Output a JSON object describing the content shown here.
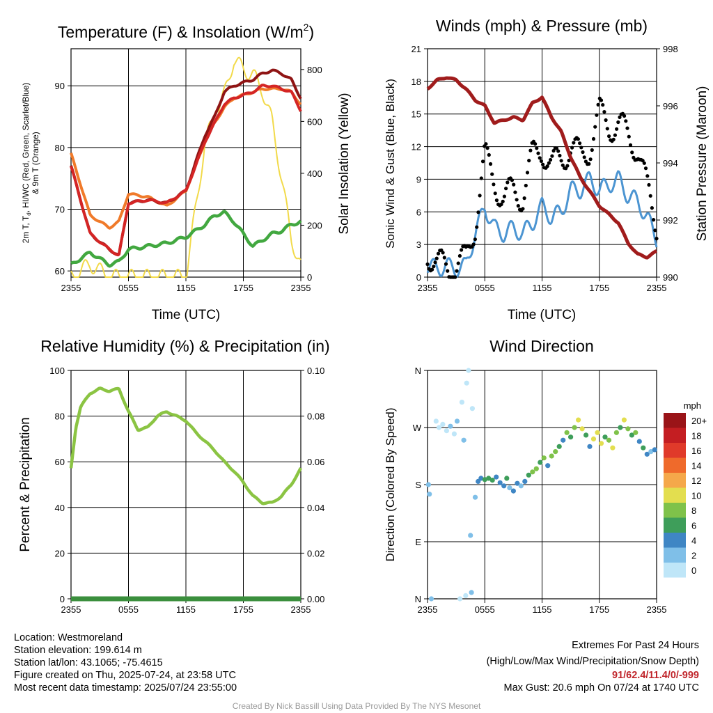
{
  "panels": {
    "temperature": {
      "title": "Temperature (F) & Insolation (W/m",
      "title_sup": "2",
      "title_end": ")",
      "ylabel_left_line1": "2m T, T",
      "ylabel_left_sub": "d",
      "ylabel_left_rest": ", HI/WC (Red, Green, Scarlet/Blue)",
      "ylabel_left_line2": "& 9m T (Orange)",
      "ylabel_right": "Solar Insolation (Yellow)",
      "xlabel": "Time (UTC)"
    },
    "winds": {
      "title": "Winds (mph) & Pressure (mb)",
      "ylabel_left": "Sonic Wind & Gust (Blue, Black)",
      "ylabel_right": "Station Pressure (Maroon)",
      "xlabel": "Time (UTC)"
    },
    "humidity": {
      "title": "Relative Humidity (%) & Precipitation (in)",
      "ylabel_left": "Percent & Precipitation"
    },
    "direction": {
      "title": "Wind Direction",
      "ylabel_left": "Direction (Colored By Speed)",
      "legend_title": "mph"
    }
  },
  "x_ticks": [
    "2355",
    "0555",
    "1155",
    "1755",
    "2355"
  ],
  "info": {
    "location": "Location: Westmoreland",
    "elevation": "Station elevation: 199.614 m",
    "latlon": "Station lat/lon: 43.1065; -75.4615",
    "created": "Figure created on Thu, 2025-07-24, at 23:58 UTC",
    "recent": "Most recent data timestamp: 2025/07/24 23:55:00"
  },
  "extremes": {
    "title": "Extremes For Past 24 Hours",
    "subtitle": "(High/Low/Max Wind/Precipitation/Snow Depth)",
    "values": "91/62.4/11.4/0/-999",
    "max_gust": "Max Gust: 20.6 mph On 07/24 at 1740 UTC"
  },
  "credit": "Created By Nick Bassill Using Data Provided By The NYS Mesonet",
  "colors": {
    "red": "#d42525",
    "scarlet": "#8f1414",
    "orange": "#f07a2a",
    "green": "#42a840",
    "yellow": "#f2da4a",
    "blue": "#4c95d2",
    "black": "#000000",
    "maroon": "#a01c1c",
    "rh_green": "#8bc443",
    "precip": "#3b8f3d"
  },
  "chart_data": [
    {
      "type": "line",
      "title": "Temperature (F) & Insolation (W/m2)",
      "xlabel": "Time (UTC)",
      "ylabel": "2m T, Td, HI/WC (Red, Green, Scarlet/Blue) & 9m T (Orange)",
      "ylabel_right": "Solar Insolation (Yellow)",
      "x_hours": [
        0,
        2,
        4,
        5,
        6,
        8,
        10,
        12,
        14,
        15,
        16,
        17,
        18,
        19,
        20,
        21,
        22,
        23,
        24
      ],
      "ylim": [
        59,
        96
      ],
      "ylim_right": [
        0,
        880
      ],
      "series": [
        {
          "name": "2m T",
          "axis": "left",
          "values": [
            77,
            66,
            63.5,
            62.5,
            71,
            71.5,
            71,
            73,
            81,
            84,
            87,
            88,
            88.5,
            89,
            90,
            90,
            89.5,
            89,
            86
          ]
        },
        {
          "name": "HI/WC",
          "axis": "left",
          "values": [
            77,
            66,
            63.5,
            62.5,
            71,
            71.5,
            71,
            73,
            82,
            85,
            89,
            90,
            90.5,
            91,
            92,
            92.5,
            92,
            91,
            88
          ]
        },
        {
          "name": "9m T",
          "axis": "left",
          "values": [
            79,
            69,
            67,
            68,
            72.5,
            72,
            70.5,
            73,
            81,
            84,
            86.5,
            88,
            88.5,
            89,
            89.5,
            89.5,
            89.5,
            89,
            87
          ]
        },
        {
          "name": "Td",
          "axis": "left",
          "values": [
            61,
            63,
            61,
            61.5,
            63.5,
            64,
            64.5,
            65.5,
            67.5,
            69,
            69.5,
            68,
            66,
            64,
            65,
            66,
            66.5,
            67.5,
            68
          ]
        },
        {
          "name": "Insolation",
          "axis": "right",
          "values": [
            0,
            50,
            0,
            0,
            0,
            0,
            0,
            0,
            520,
            620,
            700,
            840,
            800,
            780,
            720,
            600,
            380,
            150,
            40
          ]
        }
      ]
    },
    {
      "type": "line",
      "title": "Winds (mph) & Pressure (mb)",
      "xlabel": "Time (UTC)",
      "ylabel": "Sonic Wind & Gust (Blue, Black)",
      "ylabel_right": "Station Pressure (Maroon)",
      "x_hours": [
        0,
        1,
        2,
        3,
        4,
        5,
        6,
        7,
        8,
        9,
        10,
        11,
        12,
        13,
        14,
        15,
        16,
        17,
        18,
        19,
        20,
        21,
        22,
        23,
        24
      ],
      "ylim": [
        0,
        21
      ],
      "ylim_right": [
        990,
        998
      ],
      "series": [
        {
          "name": "Sonic Wind",
          "axis": "left",
          "values": [
            1,
            0.8,
            1,
            0.8,
            1,
            4,
            6.5,
            4.5,
            4,
            4.5,
            4,
            5,
            6.5,
            5.5,
            6,
            8,
            8,
            9,
            8,
            8.5,
            9,
            7.5,
            7,
            5.5,
            3.5
          ]
        },
        {
          "name": "Gust",
          "axis": "left",
          "values": [
            2.5,
            1,
            1,
            1,
            1.5,
            5,
            11,
            9,
            7,
            8,
            7.5,
            11,
            12,
            10,
            11,
            12,
            11,
            12,
            15,
            14,
            14,
            13,
            12,
            8,
            5
          ]
        },
        {
          "name": "Station Pressure",
          "axis": "right",
          "values": [
            996.6,
            996.9,
            997.0,
            996.9,
            996.6,
            996.2,
            996.0,
            995.4,
            995.5,
            995.6,
            995.5,
            996.1,
            996.3,
            995.6,
            995.1,
            994.2,
            993.5,
            993.0,
            992.5,
            992.2,
            991.9,
            991.2,
            990.8,
            990.7,
            990.9
          ]
        }
      ]
    },
    {
      "type": "line",
      "title": "Relative Humidity (%) & Precipitation (in)",
      "ylabel": "Percent & Precipitation",
      "x_hours": [
        0,
        0.5,
        1,
        2,
        3,
        4,
        5,
        6,
        7,
        8,
        9,
        10,
        11,
        12,
        13,
        14,
        15,
        16,
        17,
        18,
        19,
        20,
        21,
        22,
        23,
        24
      ],
      "ylim": [
        0,
        100
      ],
      "ylim_right": [
        0,
        0.1
      ],
      "series": [
        {
          "name": "Relative Humidity",
          "axis": "left",
          "values": [
            57,
            75,
            84,
            90,
            92,
            91,
            92,
            82,
            74,
            75,
            80,
            82,
            80,
            78,
            73,
            69,
            65,
            60,
            56,
            51,
            45,
            42,
            42,
            45,
            50,
            57
          ]
        },
        {
          "name": "Precipitation",
          "axis": "right",
          "values": [
            0,
            0,
            0,
            0,
            0,
            0,
            0,
            0,
            0,
            0,
            0,
            0,
            0,
            0,
            0,
            0,
            0,
            0,
            0,
            0,
            0,
            0,
            0,
            0,
            0,
            0
          ]
        }
      ]
    },
    {
      "type": "scatter",
      "title": "Wind Direction",
      "ylabel": "Direction (Colored By Speed)",
      "y_ticks": [
        "N",
        "E",
        "S",
        "W",
        "N"
      ],
      "ylim_degrees": [
        0,
        360
      ],
      "legend_title": "mph",
      "legend": [
        {
          "label": "0",
          "color": "#bfe6f8"
        },
        {
          "label": "2",
          "color": "#7fbfe8"
        },
        {
          "label": "4",
          "color": "#3f86c4"
        },
        {
          "label": "6",
          "color": "#3e9e5a"
        },
        {
          "label": "8",
          "color": "#7fc24a"
        },
        {
          "label": "10",
          "color": "#e3de4f"
        },
        {
          "label": "12",
          "color": "#f5a84a"
        },
        {
          "label": "14",
          "color": "#ef6a2b"
        },
        {
          "label": "16",
          "color": "#e03a2a"
        },
        {
          "label": "18",
          "color": "#c41e22"
        },
        {
          "label": "20+",
          "color": "#9a1418"
        }
      ],
      "points": [
        {
          "t": 0.1,
          "dir": 180,
          "spd": 2
        },
        {
          "t": 0.2,
          "dir": 165,
          "spd": 2
        },
        {
          "t": 0.4,
          "dir": 0,
          "spd": 1
        },
        {
          "t": 0.9,
          "dir": 280,
          "spd": 0
        },
        {
          "t": 1.2,
          "dir": 270,
          "spd": 0
        },
        {
          "t": 1.6,
          "dir": 275,
          "spd": 0
        },
        {
          "t": 2.0,
          "dir": 265,
          "spd": 0
        },
        {
          "t": 2.4,
          "dir": 272,
          "spd": 1
        },
        {
          "t": 2.8,
          "dir": 260,
          "spd": 0
        },
        {
          "t": 3.1,
          "dir": 280,
          "spd": 1
        },
        {
          "t": 3.4,
          "dir": 0,
          "spd": 0
        },
        {
          "t": 3.6,
          "dir": 310,
          "spd": 0
        },
        {
          "t": 3.8,
          "dir": 250,
          "spd": 1
        },
        {
          "t": 4.0,
          "dir": 5,
          "spd": 0
        },
        {
          "t": 4.1,
          "dir": 340,
          "spd": 0
        },
        {
          "t": 4.3,
          "dir": 360,
          "spd": 0
        },
        {
          "t": 4.5,
          "dir": 100,
          "spd": 1
        },
        {
          "t": 4.6,
          "dir": 10,
          "spd": 1
        },
        {
          "t": 4.7,
          "dir": 300,
          "spd": 0
        },
        {
          "t": 5.0,
          "dir": 160,
          "spd": 2
        },
        {
          "t": 5.3,
          "dir": 185,
          "spd": 3
        },
        {
          "t": 5.6,
          "dir": 190,
          "spd": 4
        },
        {
          "t": 6.0,
          "dir": 188,
          "spd": 5
        },
        {
          "t": 6.4,
          "dir": 190,
          "spd": 6
        },
        {
          "t": 6.8,
          "dir": 187,
          "spd": 5
        },
        {
          "t": 7.2,
          "dir": 192,
          "spd": 4
        },
        {
          "t": 7.6,
          "dir": 183,
          "spd": 3
        },
        {
          "t": 8.0,
          "dir": 178,
          "spd": 3
        },
        {
          "t": 8.3,
          "dir": 190,
          "spd": 5
        },
        {
          "t": 8.6,
          "dir": 175,
          "spd": 2
        },
        {
          "t": 9.0,
          "dir": 170,
          "spd": 3
        },
        {
          "t": 9.4,
          "dir": 182,
          "spd": 4
        },
        {
          "t": 9.8,
          "dir": 178,
          "spd": 2
        },
        {
          "t": 10.2,
          "dir": 185,
          "spd": 4
        },
        {
          "t": 10.6,
          "dir": 195,
          "spd": 6
        },
        {
          "t": 11.0,
          "dir": 200,
          "spd": 7
        },
        {
          "t": 11.4,
          "dir": 205,
          "spd": 8
        },
        {
          "t": 11.8,
          "dir": 215,
          "spd": 6
        },
        {
          "t": 12.2,
          "dir": 222,
          "spd": 8
        },
        {
          "t": 12.6,
          "dir": 210,
          "spd": 4
        },
        {
          "t": 13.0,
          "dir": 225,
          "spd": 7
        },
        {
          "t": 13.4,
          "dir": 232,
          "spd": 8
        },
        {
          "t": 13.8,
          "dir": 240,
          "spd": 6
        },
        {
          "t": 14.2,
          "dir": 250,
          "spd": 4
        },
        {
          "t": 14.6,
          "dir": 262,
          "spd": 8
        },
        {
          "t": 15.0,
          "dir": 255,
          "spd": 5
        },
        {
          "t": 15.4,
          "dir": 270,
          "spd": 8
        },
        {
          "t": 15.8,
          "dir": 282,
          "spd": 9
        },
        {
          "t": 16.2,
          "dir": 268,
          "spd": 10
        },
        {
          "t": 16.6,
          "dir": 258,
          "spd": 6
        },
        {
          "t": 17.0,
          "dir": 240,
          "spd": 4
        },
        {
          "t": 17.4,
          "dir": 252,
          "spd": 10
        },
        {
          "t": 17.8,
          "dir": 262,
          "spd": 9
        },
        {
          "t": 18.2,
          "dir": 245,
          "spd": 10
        },
        {
          "t": 18.6,
          "dir": 255,
          "spd": 6
        },
        {
          "t": 19.0,
          "dir": 250,
          "spd": 8
        },
        {
          "t": 19.4,
          "dir": 238,
          "spd": 9
        },
        {
          "t": 19.8,
          "dir": 262,
          "spd": 7
        },
        {
          "t": 20.2,
          "dir": 270,
          "spd": 6
        },
        {
          "t": 20.6,
          "dir": 282,
          "spd": 10
        },
        {
          "t": 21.0,
          "dir": 268,
          "spd": 8
        },
        {
          "t": 21.4,
          "dir": 258,
          "spd": 6
        },
        {
          "t": 21.8,
          "dir": 262,
          "spd": 7
        },
        {
          "t": 22.2,
          "dir": 248,
          "spd": 4
        },
        {
          "t": 22.6,
          "dir": 238,
          "spd": 5
        },
        {
          "t": 23.0,
          "dir": 228,
          "spd": 3
        },
        {
          "t": 23.4,
          "dir": 232,
          "spd": 2
        },
        {
          "t": 23.8,
          "dir": 235,
          "spd": 3
        }
      ]
    }
  ]
}
